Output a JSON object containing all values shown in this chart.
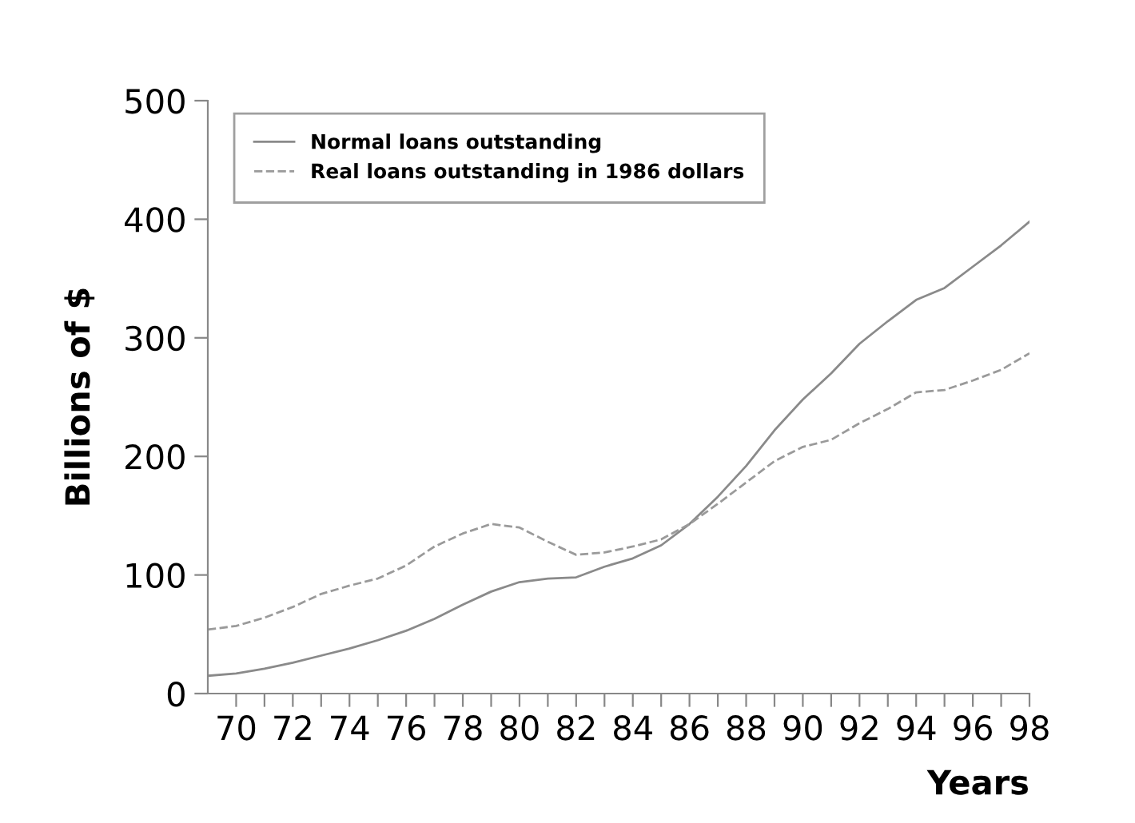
{
  "chart_data": {
    "type": "line",
    "xlabel": "Years",
    "ylabel": "Billions of $",
    "x": [
      69,
      70,
      71,
      72,
      73,
      74,
      75,
      76,
      77,
      78,
      79,
      80,
      81,
      82,
      83,
      84,
      85,
      86,
      87,
      88,
      89,
      90,
      91,
      92,
      93,
      94,
      95,
      96,
      97,
      98
    ],
    "series": [
      {
        "name": "Normal loans outstanding",
        "color": "#8a8a8a",
        "line_style": "solid",
        "values": [
          15,
          17,
          21,
          26,
          32,
          38,
          45,
          53,
          63,
          75,
          86,
          94,
          97,
          98,
          107,
          114,
          125,
          143,
          166,
          192,
          222,
          248,
          270,
          295,
          314,
          332,
          342,
          360,
          378,
          398
        ]
      },
      {
        "name": "Real loans outstanding in 1986 dollars",
        "color": "#9a9a9a",
        "line_style": "dashed",
        "values": [
          54,
          57,
          64,
          73,
          84,
          91,
          97,
          108,
          124,
          135,
          143,
          140,
          128,
          117,
          119,
          124,
          130,
          143,
          160,
          178,
          196,
          208,
          214,
          228,
          240,
          254,
          256,
          264,
          273,
          287
        ]
      }
    ],
    "xlim": [
      69,
      98
    ],
    "ylim": [
      0,
      500
    ],
    "xticks": [
      70,
      {
        "value": 71,
        "label": null
      },
      72,
      {
        "value": 73,
        "label": null
      },
      74,
      {
        "value": 75,
        "label": null
      },
      76,
      {
        "value": 77,
        "label": null
      },
      78,
      {
        "value": 79,
        "label": null
      },
      80,
      {
        "value": 81,
        "label": null
      },
      82,
      {
        "value": 83,
        "label": null
      },
      84,
      {
        "value": 85,
        "label": null
      },
      86,
      {
        "value": 87,
        "label": null
      },
      88,
      {
        "value": 89,
        "label": null
      },
      90,
      {
        "value": 91,
        "label": null
      },
      92,
      {
        "value": 93,
        "label": null
      },
      94,
      {
        "value": 95,
        "label": null
      },
      96,
      {
        "value": 97,
        "label": null
      },
      98
    ],
    "yticks": [
      0,
      100,
      200,
      300,
      400,
      500
    ],
    "legend": "top left",
    "grid": false
  }
}
